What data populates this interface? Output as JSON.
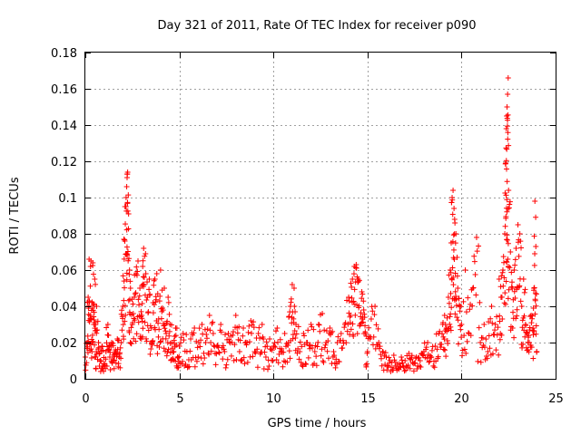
{
  "chart_data": {
    "type": "scatter",
    "title": "Day 321 of 2011, Rate Of TEC Index for receiver p090",
    "xlabel": "GPS time / hours",
    "ylabel": "ROTI / TECUs",
    "xlim": [
      0,
      25
    ],
    "ylim": [
      0,
      0.18
    ],
    "xticks": [
      0,
      5,
      10,
      15,
      20,
      25
    ],
    "yticks": [
      0,
      0.02,
      0.04,
      0.06,
      0.08,
      0.1,
      0.12,
      0.14,
      0.16,
      0.18
    ],
    "xtick_labels": [
      "0",
      "5",
      "10",
      "15",
      "20",
      "25"
    ],
    "ytick_labels": [
      "0",
      "0.02",
      "0.04",
      "0.06",
      "0.08",
      "0.1",
      "0.12",
      "0.14",
      "0.16",
      "0.18"
    ],
    "grid": true,
    "marker": "+",
    "color": "#ff0000",
    "series": [
      {
        "points": [
          [
            0.0,
            0.012
          ],
          [
            0.1,
            0.02
          ],
          [
            0.15,
            0.045
          ],
          [
            0.2,
            0.066
          ],
          [
            0.25,
            0.035
          ],
          [
            0.3,
            0.065
          ],
          [
            0.35,
            0.015
          ],
          [
            0.4,
            0.064
          ],
          [
            0.45,
            0.03
          ],
          [
            0.5,
            0.055
          ],
          [
            0.55,
            0.012
          ],
          [
            0.6,
            0.04
          ],
          [
            0.7,
            0.02
          ],
          [
            0.8,
            0.01
          ],
          [
            0.9,
            0.018
          ],
          [
            1.0,
            0.008
          ],
          [
            1.1,
            0.015
          ],
          [
            1.2,
            0.03
          ],
          [
            1.3,
            0.012
          ],
          [
            1.4,
            0.02
          ],
          [
            1.5,
            0.01
          ],
          [
            1.6,
            0.016
          ],
          [
            1.7,
            0.022
          ],
          [
            1.8,
            0.012
          ],
          [
            1.9,
            0.02
          ],
          [
            2.0,
            0.04
          ],
          [
            2.05,
            0.077
          ],
          [
            2.1,
            0.076
          ],
          [
            2.15,
            0.095
          ],
          [
            2.2,
            0.106
          ],
          [
            2.22,
            0.111
          ],
          [
            2.25,
            0.114
          ],
          [
            2.3,
            0.091
          ],
          [
            2.35,
            0.06
          ],
          [
            2.4,
            0.05
          ],
          [
            2.5,
            0.03
          ],
          [
            2.6,
            0.045
          ],
          [
            2.7,
            0.058
          ],
          [
            2.8,
            0.065
          ],
          [
            2.9,
            0.05
          ],
          [
            3.0,
            0.035
          ],
          [
            3.05,
            0.062
          ],
          [
            3.1,
            0.072
          ],
          [
            3.2,
            0.069
          ],
          [
            3.3,
            0.045
          ],
          [
            3.4,
            0.055
          ],
          [
            3.5,
            0.028
          ],
          [
            3.6,
            0.042
          ],
          [
            3.7,
            0.055
          ],
          [
            3.8,
            0.058
          ],
          [
            3.9,
            0.033
          ],
          [
            4.0,
            0.06
          ],
          [
            4.1,
            0.039
          ],
          [
            4.2,
            0.05
          ],
          [
            4.3,
            0.025
          ],
          [
            4.4,
            0.045
          ],
          [
            4.5,
            0.03
          ],
          [
            4.6,
            0.02
          ],
          [
            4.7,
            0.015
          ],
          [
            4.8,
            0.028
          ],
          [
            4.9,
            0.012
          ],
          [
            5.0,
            0.018
          ],
          [
            5.2,
            0.025
          ],
          [
            5.4,
            0.015
          ],
          [
            5.6,
            0.022
          ],
          [
            5.8,
            0.028
          ],
          [
            6.0,
            0.012
          ],
          [
            6.2,
            0.03
          ],
          [
            6.4,
            0.02
          ],
          [
            6.6,
            0.035
          ],
          [
            6.8,
            0.025
          ],
          [
            7.0,
            0.018
          ],
          [
            7.2,
            0.03
          ],
          [
            7.4,
            0.015
          ],
          [
            7.6,
            0.025
          ],
          [
            7.8,
            0.02
          ],
          [
            8.0,
            0.035
          ],
          [
            8.2,
            0.015
          ],
          [
            8.4,
            0.028
          ],
          [
            8.6,
            0.02
          ],
          [
            8.8,
            0.032
          ],
          [
            9.0,
            0.015
          ],
          [
            9.2,
            0.025
          ],
          [
            9.4,
            0.03
          ],
          [
            9.6,
            0.012
          ],
          [
            9.8,
            0.022
          ],
          [
            10.0,
            0.018
          ],
          [
            10.2,
            0.028
          ],
          [
            10.4,
            0.015
          ],
          [
            10.6,
            0.025
          ],
          [
            10.8,
            0.02
          ],
          [
            10.9,
            0.04
          ],
          [
            11.0,
            0.052
          ],
          [
            11.1,
            0.05
          ],
          [
            11.2,
            0.03
          ],
          [
            11.4,
            0.015
          ],
          [
            11.6,
            0.025
          ],
          [
            11.8,
            0.02
          ],
          [
            12.0,
            0.03
          ],
          [
            12.2,
            0.015
          ],
          [
            12.4,
            0.03
          ],
          [
            12.6,
            0.036
          ],
          [
            12.8,
            0.02
          ],
          [
            13.0,
            0.028
          ],
          [
            13.2,
            0.015
          ],
          [
            13.4,
            0.02
          ],
          [
            13.6,
            0.025
          ],
          [
            13.8,
            0.03
          ],
          [
            14.0,
            0.045
          ],
          [
            14.1,
            0.035
          ],
          [
            14.2,
            0.055
          ],
          [
            14.3,
            0.062
          ],
          [
            14.4,
            0.063
          ],
          [
            14.5,
            0.055
          ],
          [
            14.6,
            0.03
          ],
          [
            14.7,
            0.048
          ],
          [
            14.8,
            0.038
          ],
          [
            14.9,
            0.025
          ],
          [
            15.0,
            0.015
          ],
          [
            15.2,
            0.033
          ],
          [
            15.4,
            0.04
          ],
          [
            15.6,
            0.02
          ],
          [
            15.8,
            0.015
          ],
          [
            16.0,
            0.012
          ],
          [
            16.2,
            0.01
          ],
          [
            16.4,
            0.013
          ],
          [
            16.6,
            0.008
          ],
          [
            16.8,
            0.012
          ],
          [
            17.0,
            0.01
          ],
          [
            17.2,
            0.014
          ],
          [
            17.4,
            0.009
          ],
          [
            17.6,
            0.012
          ],
          [
            17.8,
            0.01
          ],
          [
            18.0,
            0.015
          ],
          [
            18.2,
            0.02
          ],
          [
            18.4,
            0.012
          ],
          [
            18.6,
            0.018
          ],
          [
            18.8,
            0.025
          ],
          [
            19.0,
            0.03
          ],
          [
            19.1,
            0.035
          ],
          [
            19.2,
            0.028
          ],
          [
            19.3,
            0.045
          ],
          [
            19.4,
            0.06
          ],
          [
            19.45,
            0.075
          ],
          [
            19.5,
            0.1
          ],
          [
            19.55,
            0.104
          ],
          [
            19.6,
            0.094
          ],
          [
            19.65,
            0.086
          ],
          [
            19.7,
            0.08
          ],
          [
            19.8,
            0.05
          ],
          [
            19.9,
            0.04
          ],
          [
            20.0,
            0.03
          ],
          [
            20.2,
            0.06
          ],
          [
            20.4,
            0.025
          ],
          [
            20.6,
            0.05
          ],
          [
            20.8,
            0.078
          ],
          [
            21.0,
            0.02
          ],
          [
            21.2,
            0.03
          ],
          [
            21.4,
            0.015
          ],
          [
            21.6,
            0.04
          ],
          [
            21.8,
            0.03
          ],
          [
            22.0,
            0.055
          ],
          [
            22.1,
            0.045
          ],
          [
            22.2,
            0.06
          ],
          [
            22.3,
            0.08
          ],
          [
            22.35,
            0.119
          ],
          [
            22.38,
            0.138
          ],
          [
            22.4,
            0.145
          ],
          [
            22.42,
            0.15
          ],
          [
            22.45,
            0.157
          ],
          [
            22.48,
            0.166
          ],
          [
            22.5,
            0.104
          ],
          [
            22.6,
            0.07
          ],
          [
            22.7,
            0.05
          ],
          [
            22.8,
            0.06
          ],
          [
            22.9,
            0.072
          ],
          [
            23.0,
            0.085
          ],
          [
            23.1,
            0.08
          ],
          [
            23.2,
            0.04
          ],
          [
            23.3,
            0.055
          ],
          [
            23.4,
            0.03
          ],
          [
            23.5,
            0.025
          ],
          [
            23.6,
            0.02
          ],
          [
            23.7,
            0.035
          ],
          [
            23.8,
            0.028
          ],
          [
            23.85,
            0.05
          ],
          [
            23.9,
            0.098
          ],
          [
            23.95,
            0.073
          ],
          [
            24.0,
            0.015
          ]
        ]
      }
    ]
  }
}
